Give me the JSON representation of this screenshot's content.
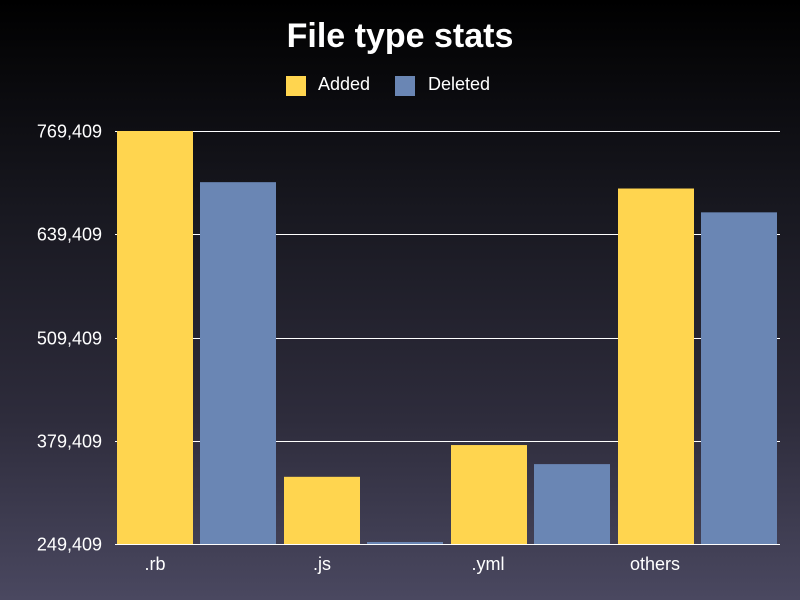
{
  "chart_data": {
    "type": "bar",
    "title": "File type stats",
    "categories": [
      ".rb",
      ".js",
      ".yml",
      "others"
    ],
    "series": [
      {
        "name": "Added",
        "color": "#ffd54f",
        "values": [
          769409,
          334000,
          374000,
          697000
        ]
      },
      {
        "name": "Deleted",
        "color": "#6a86b4",
        "values": [
          705000,
          251000,
          350000,
          667000
        ]
      }
    ],
    "yticks": [
      249409,
      379409,
      509409,
      639409,
      769409
    ],
    "ytick_labels": [
      "249,409",
      "379,409",
      "509,409",
      "639,409",
      "769,409"
    ],
    "ylim": [
      249409,
      769409
    ],
    "xlabel": "",
    "ylabel": "",
    "legend_position": "top-center",
    "grid": true
  }
}
